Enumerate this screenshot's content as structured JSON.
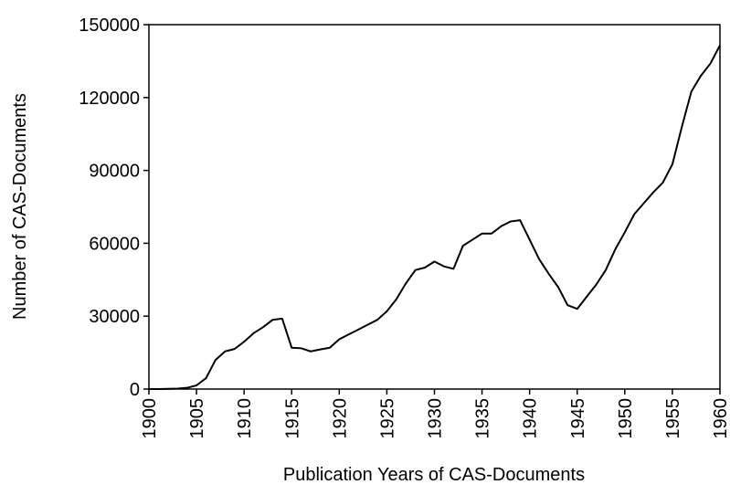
{
  "chart_data": {
    "type": "line",
    "xlabel": "Publication Years of CAS-Documents",
    "ylabel": "Number of CAS-Documents",
    "x": [
      1900,
      1901,
      1902,
      1903,
      1904,
      1905,
      1906,
      1907,
      1908,
      1909,
      1910,
      1911,
      1912,
      1913,
      1914,
      1915,
      1916,
      1917,
      1918,
      1919,
      1920,
      1921,
      1922,
      1923,
      1924,
      1925,
      1926,
      1927,
      1928,
      1929,
      1930,
      1931,
      1932,
      1933,
      1934,
      1935,
      1936,
      1937,
      1938,
      1939,
      1940,
      1941,
      1942,
      1943,
      1944,
      1945,
      1946,
      1947,
      1948,
      1949,
      1950,
      1951,
      1952,
      1953,
      1954,
      1955,
      1956,
      1957,
      1958,
      1959,
      1960
    ],
    "series": [
      {
        "name": "CAS-Documents",
        "color": "#000000",
        "values": [
          0,
          0,
          100,
          200,
          500,
          1500,
          4500,
          12000,
          15500,
          16500,
          19500,
          23000,
          25500,
          28500,
          29000,
          17000,
          16800,
          15500,
          16300,
          17000,
          20500,
          22500,
          24500,
          26500,
          28500,
          32000,
          37000,
          43500,
          49000,
          50000,
          52500,
          50500,
          49500,
          59000,
          61500,
          64000,
          64000,
          67000,
          69000,
          69500,
          61500,
          53500,
          47500,
          42000,
          34500,
          33000,
          38000,
          43000,
          49000,
          57500,
          64500,
          72000,
          76500,
          81000,
          85000,
          92500,
          108000,
          122500,
          129000,
          134000,
          141500
        ]
      }
    ],
    "xlim": [
      1900,
      1960
    ],
    "xticks": [
      1900,
      1905,
      1910,
      1915,
      1920,
      1925,
      1930,
      1935,
      1940,
      1945,
      1950,
      1955,
      1960
    ],
    "ylim": [
      0,
      150000
    ],
    "yticks": [
      0,
      30000,
      60000,
      90000,
      120000,
      150000
    ],
    "grid": false
  }
}
